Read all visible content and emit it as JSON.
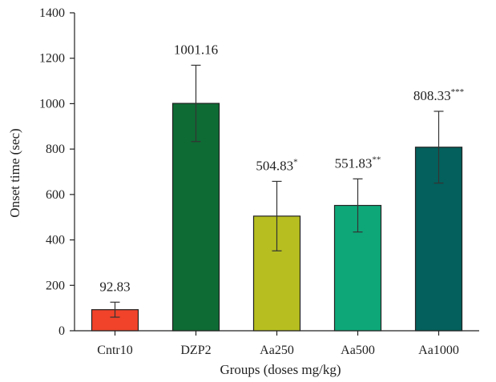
{
  "chart_data": {
    "type": "bar",
    "title": "",
    "xlabel": "Groups (doses mg/kg)",
    "ylabel": "Onset time (sec)",
    "ylim": [
      0,
      1400
    ],
    "yticks": [
      0,
      200,
      400,
      600,
      800,
      1000,
      1200,
      1400
    ],
    "categories": [
      "Cntr10",
      "DZP2",
      "Aa250",
      "Aa500",
      "Aa1000"
    ],
    "values": [
      92.83,
      1001.16,
      504.83,
      551.83,
      808.33
    ],
    "errors": [
      33,
      168,
      153,
      117,
      158
    ],
    "value_labels": [
      "92.83",
      "1001.16",
      "504.83",
      "551.83",
      "808.33"
    ],
    "significance": [
      "",
      "",
      "*",
      "**",
      "***"
    ],
    "colors": [
      "#f0432a",
      "#0e6b34",
      "#b6bf1f",
      "#0ea878",
      "#03605c"
    ],
    "grid": false,
    "legend": "none"
  }
}
